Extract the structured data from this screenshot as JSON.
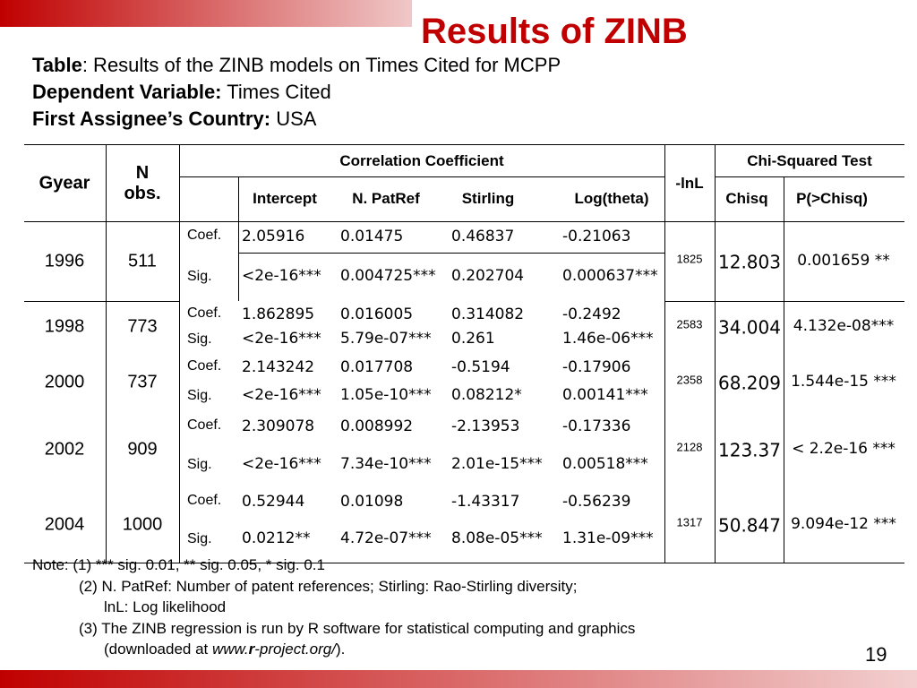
{
  "title": "Results of ZINB",
  "header": {
    "lines": [
      {
        "label": "Table",
        "text": ": Results of the ZINB models on Times Cited for MCPP"
      },
      {
        "label": "Dependent Variable:",
        "text": " Times Cited"
      },
      {
        "label": "First Assignee’s Country:",
        "text": " USA"
      }
    ]
  },
  "table": {
    "headers": {
      "gyear": "Gyear",
      "n": "N obs.",
      "corr": "Correlation Coefficient",
      "lnl": "-lnL",
      "chi": "Chi-Squared Test",
      "sub": [
        "Intercept",
        "N. PatRef",
        "Stirling",
        "Log(theta)",
        "Chisq",
        "P(>Chisq)"
      ]
    },
    "rows": [
      {
        "gyear": "1996",
        "n": "511",
        "lnl": "1825",
        "chisq": "12.803",
        "p": "0.001659 **",
        "coef": {
          "label": "Coef.",
          "values": [
            "2.05916",
            "0.01475",
            "0.46837",
            "-0.21063"
          ]
        },
        "sig": {
          "label": "Sig.",
          "values": [
            "<2e-16***",
            "0.004725***",
            "0.202704",
            "0.000637***"
          ]
        }
      },
      {
        "gyear": "1998",
        "n": "773",
        "lnl": "2583",
        "chisq": "34.004",
        "p": "4.132e-08***",
        "coef": {
          "label": "Coef.",
          "values": [
            "1.862895",
            "0.016005",
            "0.314082",
            "-0.2492"
          ]
        },
        "sig": {
          "label": "Sig.",
          "values": [
            "<2e-16***",
            "5.79e-07***",
            "0.261",
            "1.46e-06***"
          ]
        }
      },
      {
        "gyear": "2000",
        "n": "737",
        "lnl": "2358",
        "chisq": "68.209",
        "p": "1.544e-15 ***",
        "coef": {
          "label": "Coef.",
          "values": [
            "2.143242",
            "0.017708",
            "-0.5194",
            "-0.17906"
          ]
        },
        "sig": {
          "label": "Sig.",
          "values": [
            "<2e-16***",
            "1.05e-10***",
            "0.08212*",
            "0.00141***"
          ]
        }
      },
      {
        "gyear": "2002",
        "n": "909",
        "lnl": "2128",
        "chisq": "123.37",
        "p": "< 2.2e-16 ***",
        "coef": {
          "label": "Coef.",
          "values": [
            "2.309078",
            "0.008992",
            "-2.13953",
            "-0.17336"
          ]
        },
        "sig": {
          "label": "Sig.",
          "values": [
            "<2e-16***",
            "7.34e-10***",
            "2.01e-15***",
            "0.00518***"
          ]
        }
      },
      {
        "gyear": "2004",
        "n": "1000",
        "lnl": "1317",
        "chisq": "50.847",
        "p": "9.094e-12 ***",
        "coef": {
          "label": "Coef.",
          "values": [
            "0.52944",
            "0.01098",
            "-1.43317",
            "-0.56239"
          ]
        },
        "sig": {
          "label": "Sig.",
          "values": [
            "0.0212**",
            "4.72e-07***",
            "8.08e-05***",
            "1.31e-09***"
          ]
        }
      }
    ]
  },
  "notes": {
    "lines": [
      "Note: (1) *** sig. 0.01, ** sig. 0.05, * sig. 0.1",
      "(2) N. PatRef: Number of patent references; Stirling: Rao-Stirling diversity;",
      "lnL: Log likelihood",
      "(3) The ZINB regression is run by R software for statistical computing and graphics"
    ],
    "last": {
      "prefix": "(downloaded at ",
      "link_a": "www.",
      "link_b": "r",
      "link_c": "-project.org/",
      "suffix": ")."
    }
  },
  "page_number": "19"
}
